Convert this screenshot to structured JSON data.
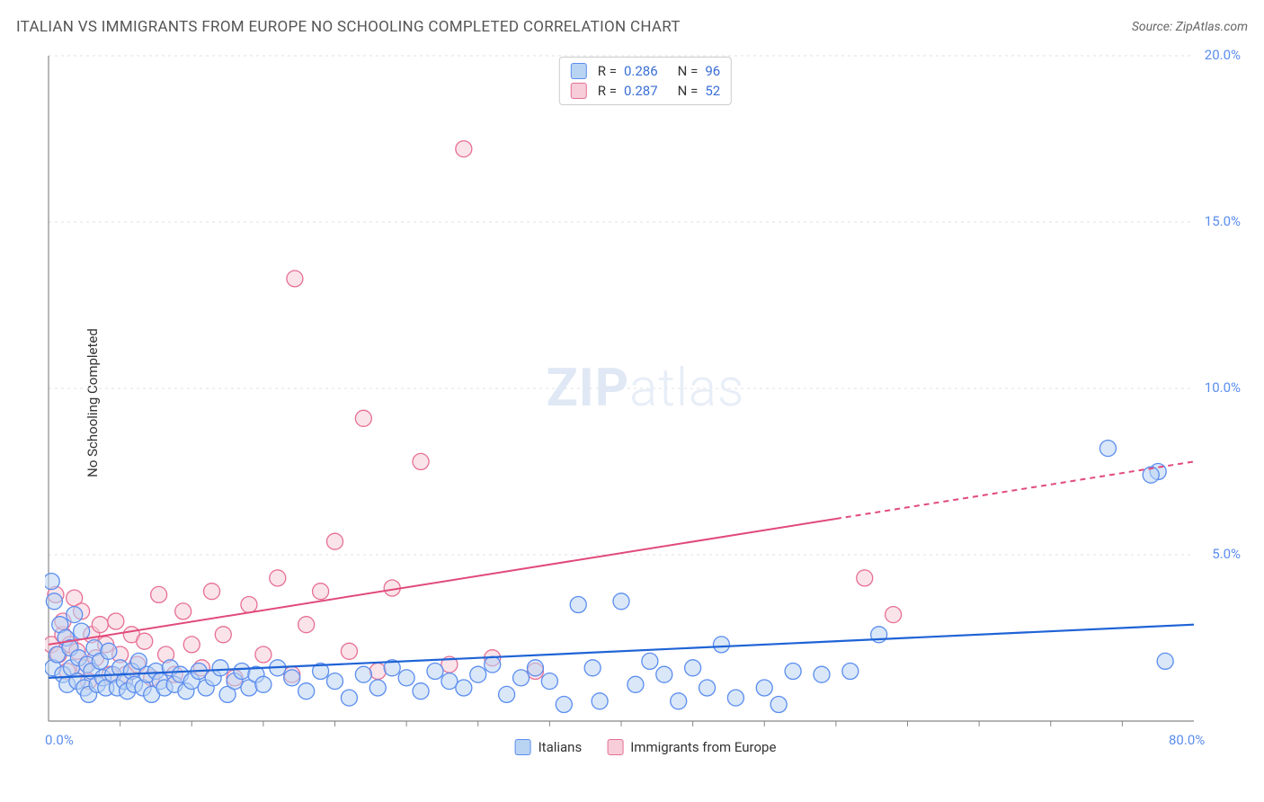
{
  "title": "ITALIAN VS IMMIGRANTS FROM EUROPE NO SCHOOLING COMPLETED CORRELATION CHART",
  "source": "Source: ZipAtlas.com",
  "y_axis_label": "No Schooling Completed",
  "watermark": {
    "bold": "ZIP",
    "light": "atlas"
  },
  "chart": {
    "type": "scatter-with-regression",
    "xlim": [
      0,
      80
    ],
    "ylim": [
      0,
      20
    ],
    "x_tick_major": [
      0,
      80
    ],
    "x_tick_minor_step": 5,
    "y_ticks": [
      5,
      10,
      15,
      20
    ],
    "x_tick_labels": {
      "0": "0.0%",
      "80": "80.0%"
    },
    "y_tick_labels": {
      "5": "5.0%",
      "10": "10.0%",
      "15": "15.0%",
      "20": "20.0%"
    },
    "grid_color": "#e2e2e2",
    "grid_dash": "3,4",
    "axis_color": "#888888",
    "background_color": "#ffffff",
    "series": [
      {
        "name": "Italians",
        "label": "Italians",
        "legend_swatch_fill": "#b9d3f2",
        "legend_swatch_stroke": "#5b8def",
        "point_fill": "#b9d3f2",
        "point_stroke": "#5b8def",
        "point_fill_opacity": 0.55,
        "point_radius": 9,
        "line_color": "#1f63d6",
        "line_width": 2.2,
        "r_value": "0.286",
        "n_value": "96",
        "regression": {
          "x1": 0,
          "y1": 1.3,
          "x2": 80,
          "y2": 2.9
        },
        "points": [
          [
            0.2,
            4.2
          ],
          [
            0.3,
            1.6
          ],
          [
            0.4,
            3.6
          ],
          [
            0.6,
            2.0
          ],
          [
            0.8,
            2.9
          ],
          [
            1.0,
            1.4
          ],
          [
            1.2,
            2.5
          ],
          [
            1.3,
            1.1
          ],
          [
            1.5,
            2.2
          ],
          [
            1.6,
            1.6
          ],
          [
            1.8,
            3.2
          ],
          [
            2.0,
            1.2
          ],
          [
            2.1,
            1.9
          ],
          [
            2.3,
            2.7
          ],
          [
            2.5,
            1.0
          ],
          [
            2.7,
            1.7
          ],
          [
            2.8,
            0.8
          ],
          [
            3.0,
            1.5
          ],
          [
            3.2,
            2.2
          ],
          [
            3.4,
            1.1
          ],
          [
            3.6,
            1.8
          ],
          [
            3.8,
            1.3
          ],
          [
            4.0,
            1.0
          ],
          [
            4.2,
            2.1
          ],
          [
            4.5,
            1.4
          ],
          [
            4.8,
            1.0
          ],
          [
            5.0,
            1.6
          ],
          [
            5.3,
            1.2
          ],
          [
            5.5,
            0.9
          ],
          [
            5.8,
            1.5
          ],
          [
            6.0,
            1.1
          ],
          [
            6.3,
            1.8
          ],
          [
            6.6,
            1.0
          ],
          [
            6.9,
            1.4
          ],
          [
            7.2,
            0.8
          ],
          [
            7.5,
            1.5
          ],
          [
            7.8,
            1.2
          ],
          [
            8.1,
            1.0
          ],
          [
            8.5,
            1.6
          ],
          [
            8.8,
            1.1
          ],
          [
            9.2,
            1.4
          ],
          [
            9.6,
            0.9
          ],
          [
            10.0,
            1.2
          ],
          [
            10.5,
            1.5
          ],
          [
            11.0,
            1.0
          ],
          [
            11.5,
            1.3
          ],
          [
            12.0,
            1.6
          ],
          [
            12.5,
            0.8
          ],
          [
            13.0,
            1.2
          ],
          [
            13.5,
            1.5
          ],
          [
            14.0,
            1.0
          ],
          [
            14.5,
            1.4
          ],
          [
            15.0,
            1.1
          ],
          [
            16.0,
            1.6
          ],
          [
            17.0,
            1.3
          ],
          [
            18.0,
            0.9
          ],
          [
            19.0,
            1.5
          ],
          [
            20.0,
            1.2
          ],
          [
            21.0,
            0.7
          ],
          [
            22.0,
            1.4
          ],
          [
            23.0,
            1.0
          ],
          [
            24.0,
            1.6
          ],
          [
            25.0,
            1.3
          ],
          [
            26.0,
            0.9
          ],
          [
            27.0,
            1.5
          ],
          [
            28.0,
            1.2
          ],
          [
            29.0,
            1.0
          ],
          [
            30.0,
            1.4
          ],
          [
            31.0,
            1.7
          ],
          [
            32.0,
            0.8
          ],
          [
            33.0,
            1.3
          ],
          [
            34.0,
            1.6
          ],
          [
            35.0,
            1.2
          ],
          [
            36.0,
            0.5
          ],
          [
            37.0,
            3.5
          ],
          [
            38.0,
            1.6
          ],
          [
            38.5,
            0.6
          ],
          [
            40.0,
            3.6
          ],
          [
            41.0,
            1.1
          ],
          [
            42.0,
            1.8
          ],
          [
            43.0,
            1.4
          ],
          [
            44.0,
            0.6
          ],
          [
            45.0,
            1.6
          ],
          [
            46.0,
            1.0
          ],
          [
            47.0,
            2.3
          ],
          [
            48.0,
            0.7
          ],
          [
            50.0,
            1.0
          ],
          [
            51.0,
            0.5
          ],
          [
            52.0,
            1.5
          ],
          [
            54.0,
            1.4
          ],
          [
            56.0,
            1.5
          ],
          [
            58.0,
            2.6
          ],
          [
            74.0,
            8.2
          ],
          [
            77.5,
            7.5
          ],
          [
            77.0,
            7.4
          ],
          [
            78.0,
            1.8
          ]
        ]
      },
      {
        "name": "Immigrants from Europe",
        "label": "Immigrants from Europe",
        "legend_swatch_fill": "#f6cdd8",
        "legend_swatch_stroke": "#e76f94",
        "point_fill": "#f6cdd8",
        "point_stroke": "#e76f94",
        "point_fill_opacity": 0.55,
        "point_radius": 9,
        "line_color": "#e14a7a",
        "line_width": 2.0,
        "line_dash_after_x": 55,
        "r_value": "0.287",
        "n_value": "52",
        "regression": {
          "x1": 0,
          "y1": 2.3,
          "x2": 80,
          "y2": 7.8
        },
        "points": [
          [
            0.2,
            2.3
          ],
          [
            0.5,
            3.8
          ],
          [
            0.7,
            2.0
          ],
          [
            1.0,
            2.6
          ],
          [
            1.0,
            3.0
          ],
          [
            1.3,
            1.5
          ],
          [
            1.5,
            2.3
          ],
          [
            1.8,
            3.7
          ],
          [
            2.0,
            2.1
          ],
          [
            2.3,
            3.3
          ],
          [
            2.5,
            1.6
          ],
          [
            2.8,
            1.2
          ],
          [
            3.0,
            2.6
          ],
          [
            3.3,
            1.9
          ],
          [
            3.6,
            2.9
          ],
          [
            4.0,
            2.3
          ],
          [
            4.3,
            1.4
          ],
          [
            4.7,
            3.0
          ],
          [
            5.0,
            2.0
          ],
          [
            5.4,
            1.4
          ],
          [
            5.8,
            2.6
          ],
          [
            6.2,
            1.7
          ],
          [
            6.7,
            2.4
          ],
          [
            7.2,
            1.3
          ],
          [
            7.7,
            3.8
          ],
          [
            8.2,
            2.0
          ],
          [
            8.8,
            1.4
          ],
          [
            9.4,
            3.3
          ],
          [
            10.0,
            2.3
          ],
          [
            10.7,
            1.6
          ],
          [
            11.4,
            3.9
          ],
          [
            12.2,
            2.6
          ],
          [
            13.0,
            1.3
          ],
          [
            14.0,
            3.5
          ],
          [
            15.0,
            2.0
          ],
          [
            16.0,
            4.3
          ],
          [
            17.0,
            1.4
          ],
          [
            17.2,
            13.3
          ],
          [
            18.0,
            2.9
          ],
          [
            19.0,
            3.9
          ],
          [
            20.0,
            5.4
          ],
          [
            21.0,
            2.1
          ],
          [
            22.0,
            9.1
          ],
          [
            23.0,
            1.5
          ],
          [
            24.0,
            4.0
          ],
          [
            26.0,
            7.8
          ],
          [
            28.0,
            1.7
          ],
          [
            29.0,
            17.2
          ],
          [
            31.0,
            1.9
          ],
          [
            34.0,
            1.5
          ],
          [
            57.0,
            4.3
          ],
          [
            59.0,
            3.2
          ]
        ]
      }
    ]
  },
  "legend_labels": {
    "r": "R =",
    "n": "N ="
  }
}
